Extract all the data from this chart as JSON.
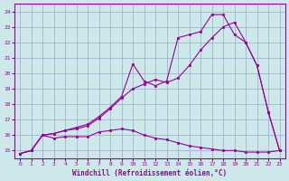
{
  "xlabel": "Windchill (Refroidissement éolien,°C)",
  "background_color": "#cde8e8",
  "grid_color": "#99aacc",
  "line_color": "#990099",
  "xlim": [
    -0.5,
    23.5
  ],
  "ylim": [
    14.5,
    24.5
  ],
  "xticks": [
    0,
    1,
    2,
    3,
    4,
    5,
    6,
    7,
    8,
    9,
    10,
    11,
    12,
    13,
    14,
    15,
    16,
    17,
    18,
    19,
    20,
    21,
    22,
    23
  ],
  "yticks": [
    15,
    16,
    17,
    18,
    19,
    20,
    21,
    22,
    23,
    24
  ],
  "line1_x": [
    0,
    1,
    2,
    3,
    4,
    5,
    6,
    7,
    8,
    9,
    10,
    11,
    12,
    13,
    14,
    15,
    16,
    17,
    18,
    19,
    20,
    21,
    22,
    23
  ],
  "line1_y": [
    14.8,
    15.0,
    16.0,
    15.8,
    15.9,
    15.9,
    15.9,
    16.2,
    16.3,
    16.4,
    16.3,
    16.0,
    15.8,
    15.7,
    15.5,
    15.3,
    15.2,
    15.1,
    15.0,
    15.0,
    14.9,
    14.9,
    14.9,
    15.0
  ],
  "line2_x": [
    0,
    1,
    2,
    3,
    4,
    5,
    6,
    7,
    8,
    9,
    10,
    11,
    12,
    13,
    14,
    15,
    16,
    17,
    18,
    19,
    20,
    21,
    22,
    23
  ],
  "line2_y": [
    14.8,
    15.0,
    16.0,
    16.1,
    16.3,
    16.4,
    16.6,
    17.1,
    17.7,
    18.4,
    19.0,
    19.3,
    19.6,
    19.4,
    19.7,
    20.5,
    21.5,
    22.3,
    23.0,
    23.3,
    22.0,
    20.5,
    17.5,
    15.0
  ],
  "line3_x": [
    0,
    1,
    2,
    3,
    4,
    5,
    6,
    7,
    8,
    9,
    10,
    11,
    12,
    13,
    14,
    15,
    16,
    17,
    18,
    19,
    20,
    21,
    22,
    23
  ],
  "line3_y": [
    14.8,
    15.0,
    16.0,
    16.1,
    16.3,
    16.5,
    16.7,
    17.2,
    17.8,
    18.5,
    20.6,
    19.5,
    19.2,
    19.5,
    22.3,
    22.5,
    22.7,
    23.8,
    23.8,
    22.5,
    22.0,
    20.5,
    17.5,
    15.0
  ]
}
